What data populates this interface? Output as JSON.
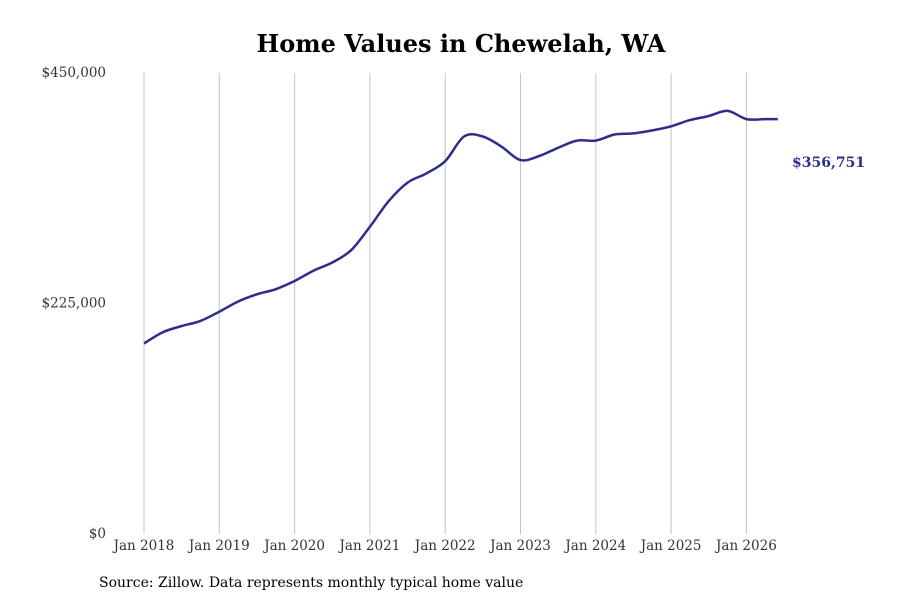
{
  "chart_data": {
    "type": "line",
    "title": "Home Values in Chewelah, WA",
    "xlabel": "",
    "ylabel": "",
    "x_ticks": [
      "Jan 2018",
      "Jan 2019",
      "Jan 2020",
      "Jan 2021",
      "Jan 2022",
      "Jan 2023",
      "Jan 2024",
      "Jan 2025",
      "Jan 2026"
    ],
    "y_ticks": [
      {
        "value": 0,
        "label": "$0"
      },
      {
        "value": 225000,
        "label": "$225,000"
      },
      {
        "value": 450000,
        "label": "$450,000"
      }
    ],
    "ylim": [
      0,
      450000
    ],
    "xlim": [
      "2018-01",
      "2026-06"
    ],
    "grid": "vertical",
    "line_color": "#2e2e8a",
    "series": [
      {
        "x": [
          "2018-01",
          "2018-04",
          "2018-07",
          "2018-10",
          "2019-01",
          "2019-04",
          "2019-07",
          "2019-10",
          "2020-01",
          "2020-04",
          "2020-07",
          "2020-10",
          "2021-01",
          "2021-04",
          "2021-07",
          "2021-10",
          "2022-01",
          "2022-04",
          "2022-07",
          "2022-10",
          "2023-01",
          "2023-04",
          "2023-07",
          "2023-10",
          "2024-01",
          "2024-04",
          "2024-07",
          "2024-10",
          "2025-01",
          "2025-04",
          "2025-07",
          "2025-10",
          "2026-01",
          "2026-04",
          "2026-06"
        ],
        "y": [
          186000,
          197000,
          203000,
          208000,
          217000,
          227000,
          234000,
          239000,
          247000,
          257000,
          265000,
          277000,
          300000,
          325000,
          343000,
          352000,
          364000,
          388000,
          388000,
          378000,
          365000,
          369000,
          377000,
          384000,
          384000,
          390000,
          391000,
          394000,
          398000,
          404000,
          408000,
          413000,
          405000,
          405000,
          356751
        ],
        "end_label": "$356,751"
      }
    ]
  },
  "source": "Source: Zillow. Data represents monthly typical home value"
}
